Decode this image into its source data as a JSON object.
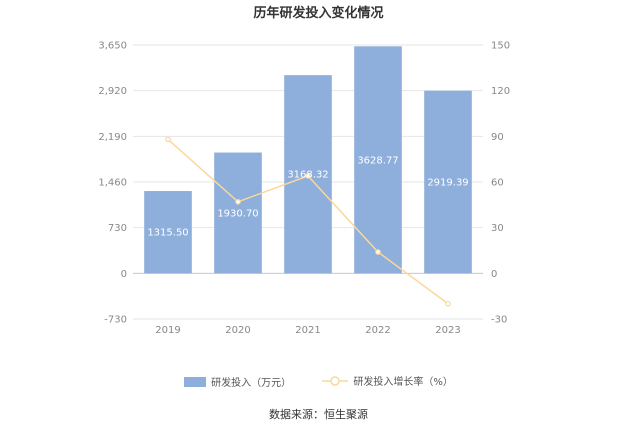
{
  "chart_data": {
    "type": "bar",
    "title": "历年研发投入变化情况",
    "categories": [
      "2019",
      "2020",
      "2021",
      "2022",
      "2023"
    ],
    "series": [
      {
        "name": "研发投入（万元）",
        "type": "bar",
        "axis": "left",
        "values": [
          1315.5,
          1930.7,
          3168.32,
          3628.77,
          2919.39
        ],
        "labels": [
          "1315.50",
          "1930.70",
          "3168.32",
          "3628.77",
          "2919.39"
        ],
        "color": "#8eaedb"
      },
      {
        "name": "研发投入增长率（%）",
        "type": "line",
        "axis": "right",
        "values": [
          88,
          47,
          64,
          14,
          -20
        ],
        "color": "#fad89a"
      }
    ],
    "y_left": {
      "ticks": [
        "3,650",
        "2,920",
        "2,190",
        "1,460",
        "730",
        "0",
        "-730"
      ],
      "ylim": [
        -730,
        3650
      ]
    },
    "y_right": {
      "ticks": [
        "150",
        "120",
        "90",
        "60",
        "30",
        "0",
        "-30"
      ],
      "ylim": [
        -30,
        150
      ]
    },
    "grid": true,
    "legend": "bottom-center"
  },
  "source": "数据来源：恒生聚源"
}
